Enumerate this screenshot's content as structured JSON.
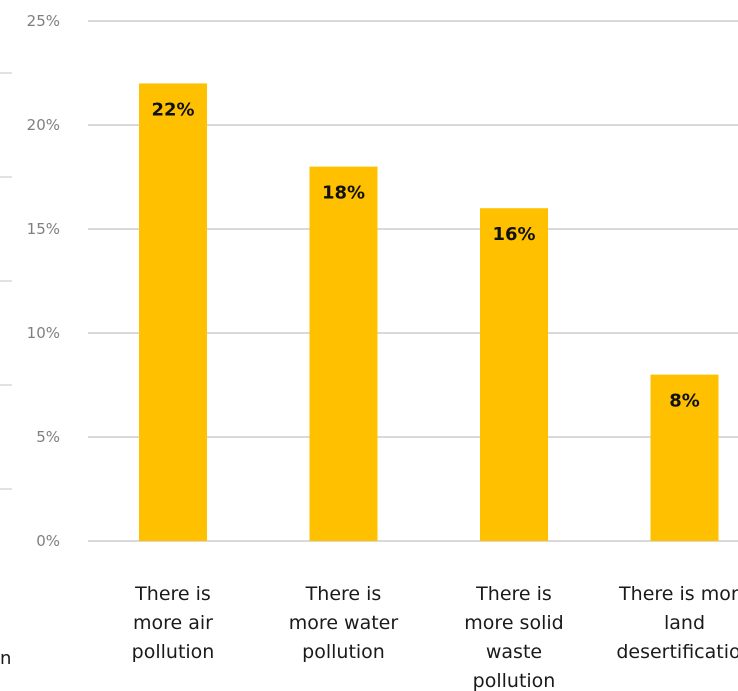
{
  "chart_data": {
    "type": "bar",
    "categories": [
      [
        "There is",
        "more air",
        "pollution"
      ],
      [
        "There is",
        "more water",
        "pollution"
      ],
      [
        "There is",
        "more solid",
        "waste",
        "pollution"
      ],
      [
        "There is more",
        "land",
        "desertification"
      ]
    ],
    "values": [
      22,
      18,
      16,
      8
    ],
    "data_labels": [
      "22%",
      "18%",
      "16%",
      "8%"
    ],
    "y_ticks": [
      {
        "value": 0,
        "label": "0%"
      },
      {
        "value": 5,
        "label": "5%"
      },
      {
        "value": 10,
        "label": "10%"
      },
      {
        "value": 15,
        "label": "15%"
      },
      {
        "value": 20,
        "label": "20%"
      },
      {
        "value": 25,
        "label": "25%"
      }
    ],
    "ylim": [
      0,
      25
    ],
    "grid": true,
    "title": "",
    "xlabel": "",
    "ylabel": ""
  },
  "stray_text": "n",
  "colors": {
    "bar": "#ffc000",
    "grid": "#d9d9d9",
    "tick_text": "#7f7f7f",
    "label_text": "#111111"
  }
}
